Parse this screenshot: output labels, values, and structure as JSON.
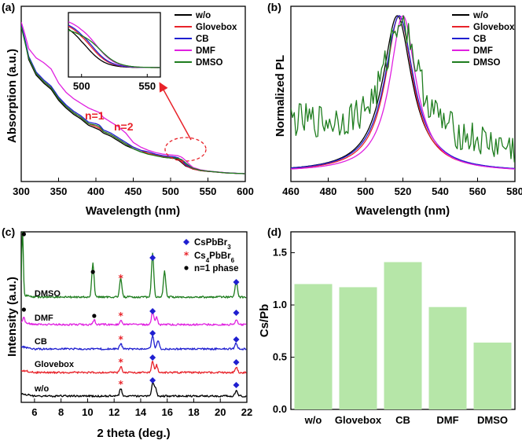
{
  "colors": {
    "wo": "#000000",
    "glovebox": "#e8232a",
    "cb": "#1f1fd0",
    "dmf": "#e020e0",
    "dmso": "#1e7d1e",
    "bar": "#b6e6a8",
    "arrow": "#e8232a"
  },
  "chart_data": [
    {
      "panel": "(a)",
      "type": "line",
      "xlabel": "Wavelength (nm)",
      "ylabel": "Absorption (a.u.)",
      "xlim": [
        300,
        600
      ],
      "xticks": [
        300,
        350,
        400,
        450,
        500,
        550,
        600
      ],
      "legend": [
        "w/o",
        "Glovebox",
        "CB",
        "DMF",
        "DMSO"
      ],
      "annotations": [
        "n=1",
        "n=2"
      ],
      "series": [
        {
          "name": "w/o",
          "x": [
            300,
            305,
            310,
            320,
            330,
            340,
            350,
            360,
            370,
            380,
            390,
            400,
            405,
            410,
            420,
            430,
            440,
            450,
            460,
            470,
            480,
            490,
            500,
            505,
            510,
            515,
            520,
            525,
            530,
            540,
            550,
            575,
            600
          ],
          "y": [
            1.0,
            0.9,
            0.78,
            0.68,
            0.63,
            0.59,
            0.52,
            0.47,
            0.43,
            0.4,
            0.36,
            0.34,
            0.33,
            0.31,
            0.29,
            0.26,
            0.23,
            0.21,
            0.19,
            0.18,
            0.17,
            0.155,
            0.15,
            0.148,
            0.14,
            0.12,
            0.1,
            0.09,
            0.08,
            0.07,
            0.065,
            0.055,
            0.05
          ]
        },
        {
          "name": "Glovebox",
          "x": [
            300,
            305,
            310,
            320,
            330,
            340,
            350,
            360,
            370,
            380,
            390,
            400,
            405,
            410,
            420,
            430,
            440,
            450,
            460,
            470,
            480,
            490,
            500,
            505,
            510,
            515,
            520,
            525,
            530,
            540,
            550,
            575,
            600
          ],
          "y": [
            1.0,
            0.9,
            0.79,
            0.69,
            0.64,
            0.6,
            0.53,
            0.48,
            0.44,
            0.41,
            0.37,
            0.35,
            0.34,
            0.32,
            0.3,
            0.27,
            0.24,
            0.22,
            0.2,
            0.18,
            0.17,
            0.16,
            0.155,
            0.152,
            0.145,
            0.125,
            0.105,
            0.09,
            0.08,
            0.07,
            0.065,
            0.055,
            0.05
          ]
        },
        {
          "name": "CB",
          "x": [
            300,
            305,
            310,
            320,
            330,
            340,
            350,
            360,
            370,
            380,
            390,
            400,
            405,
            410,
            420,
            430,
            440,
            450,
            460,
            470,
            480,
            490,
            500,
            505,
            510,
            515,
            520,
            525,
            530,
            540,
            550,
            575,
            600
          ],
          "y": [
            1.0,
            0.91,
            0.8,
            0.7,
            0.65,
            0.61,
            0.54,
            0.49,
            0.45,
            0.42,
            0.38,
            0.37,
            0.36,
            0.33,
            0.31,
            0.28,
            0.25,
            0.22,
            0.2,
            0.19,
            0.175,
            0.165,
            0.16,
            0.158,
            0.152,
            0.135,
            0.11,
            0.095,
            0.085,
            0.072,
            0.066,
            0.056,
            0.05
          ]
        },
        {
          "name": "DMF",
          "x": [
            300,
            305,
            310,
            320,
            330,
            340,
            350,
            360,
            370,
            380,
            390,
            400,
            405,
            410,
            420,
            430,
            440,
            450,
            460,
            470,
            480,
            490,
            500,
            505,
            510,
            515,
            520,
            525,
            530,
            540,
            550,
            575,
            600
          ],
          "y": [
            1.02,
            0.94,
            0.85,
            0.79,
            0.76,
            0.72,
            0.63,
            0.57,
            0.53,
            0.5,
            0.47,
            0.45,
            0.44,
            0.41,
            0.38,
            0.35,
            0.31,
            0.25,
            0.22,
            0.2,
            0.185,
            0.175,
            0.17,
            0.168,
            0.165,
            0.155,
            0.135,
            0.11,
            0.09,
            0.075,
            0.067,
            0.056,
            0.05
          ]
        },
        {
          "name": "DMSO",
          "x": [
            300,
            305,
            310,
            320,
            330,
            340,
            350,
            360,
            370,
            380,
            390,
            400,
            405,
            410,
            420,
            430,
            440,
            450,
            460,
            470,
            480,
            490,
            500,
            505,
            510,
            515,
            520,
            525,
            530,
            540,
            550,
            575,
            600
          ],
          "y": [
            0.99,
            0.89,
            0.79,
            0.69,
            0.64,
            0.6,
            0.53,
            0.48,
            0.44,
            0.41,
            0.37,
            0.36,
            0.35,
            0.32,
            0.3,
            0.27,
            0.24,
            0.21,
            0.19,
            0.175,
            0.165,
            0.155,
            0.15,
            0.15,
            0.148,
            0.14,
            0.12,
            0.1,
            0.085,
            0.072,
            0.066,
            0.055,
            0.05
          ]
        }
      ],
      "inset": {
        "xlim": [
          490,
          560
        ],
        "xticks": [
          500,
          550
        ]
      }
    },
    {
      "panel": "(b)",
      "type": "line",
      "xlabel": "Wavelength (nm)",
      "ylabel": "Normalized PL",
      "xlim": [
        460,
        580
      ],
      "xticks": [
        460,
        480,
        500,
        520,
        540,
        560,
        580
      ],
      "legend": [
        "w/o",
        "Glovebox",
        "CB",
        "DMF",
        "DMSO"
      ],
      "peaks": [
        {
          "name": "w/o",
          "center": 517,
          "fwhm": 19
        },
        {
          "name": "Glovebox",
          "center": 518,
          "fwhm": 18
        },
        {
          "name": "CB",
          "center": 518,
          "fwhm": 19
        },
        {
          "name": "DMF",
          "center": 520,
          "fwhm": 17
        },
        {
          "name": "DMSO",
          "center": 519,
          "fwhm": 20,
          "noisy": true,
          "baseline": 0.35
        }
      ]
    },
    {
      "panel": "(c)",
      "type": "line",
      "xlabel": "2 theta (deg.)",
      "ylabel": "Intensity (a.u.)",
      "xlim": [
        5,
        22
      ],
      "xticks": [
        6,
        8,
        10,
        12,
        14,
        16,
        18,
        20,
        22
      ],
      "legend": [
        "CsPbBr3",
        "Cs4PbBr6",
        "n=1 phase"
      ],
      "series": [
        {
          "name": "DMSO",
          "peaks": [
            [
              5.1,
              1.0
            ],
            [
              10.4,
              0.5
            ],
            [
              12.5,
              0.28
            ],
            [
              14.9,
              0.65
            ],
            [
              15.8,
              0.38
            ],
            [
              21.2,
              0.25
            ]
          ]
        },
        {
          "name": "DMF",
          "peaks": [
            [
              5.2,
              0.08
            ],
            [
              10.5,
              0.06
            ],
            [
              12.5,
              0.05
            ],
            [
              14.9,
              0.18
            ],
            [
              15.2,
              0.1
            ],
            [
              21.2,
              0.07
            ]
          ]
        },
        {
          "name": "CB",
          "peaks": [
            [
              12.5,
              0.07
            ],
            [
              14.9,
              0.18
            ],
            [
              15.3,
              0.12
            ],
            [
              21.2,
              0.08
            ]
          ]
        },
        {
          "name": "Glovebox",
          "peaks": [
            [
              12.5,
              0.08
            ],
            [
              14.9,
              0.15
            ],
            [
              15.2,
              0.1
            ],
            [
              21.2,
              0.07
            ]
          ]
        },
        {
          "name": "w/o",
          "peaks": [
            [
              12.5,
              0.1
            ],
            [
              14.9,
              0.17
            ],
            [
              15.1,
              0.12
            ],
            [
              21.2,
              0.08
            ]
          ]
        }
      ]
    },
    {
      "panel": "(d)",
      "type": "bar",
      "categories": [
        "w/o",
        "Glovebox",
        "CB",
        "DMF",
        "DMSO"
      ],
      "values": [
        1.2,
        1.17,
        1.41,
        0.98,
        0.64
      ],
      "ylabel": "Cs/Pb",
      "ylim": [
        0,
        1.7
      ],
      "yticks": [
        0.0,
        0.5,
        1.0,
        1.5
      ]
    }
  ]
}
